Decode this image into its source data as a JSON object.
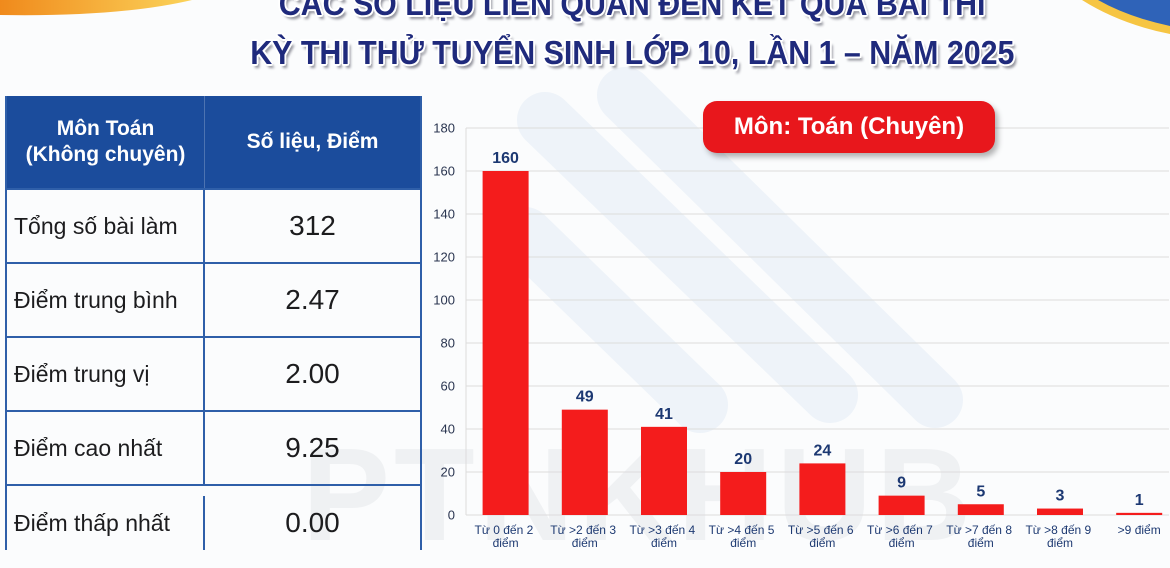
{
  "title": {
    "line1": "CÁC SỐ LIỆU LIÊN QUAN ĐẾN KẾT QUẢ BÀI THI",
    "line2": "KỲ THI THỬ TUYỂN SINH LỚP 10, LẦN 1 – NĂM 2025"
  },
  "stats_table": {
    "header": {
      "subject_line1": "Môn Toán",
      "subject_line2": "(Không chuyên)",
      "value_column": "Số liệu, Điểm"
    },
    "rows": [
      {
        "label": "Tổng số bài làm",
        "value": "312"
      },
      {
        "label": "Điểm trung bình",
        "value": "2.47"
      },
      {
        "label": "Điểm trung vị",
        "value": "2.00"
      },
      {
        "label": "Điểm cao nhất",
        "value": "9.25"
      },
      {
        "label": "Điểm thấp nhất",
        "value": "0.00"
      }
    ]
  },
  "chart_data": {
    "type": "bar",
    "title": "Môn: Toán (Chuyên)",
    "categories": [
      "Từ 0 đến 2 điểm",
      "Từ >2 đến 3 điểm",
      "Từ >3 đến 4 điểm",
      "Từ >4 đến 5 điểm",
      "Từ >5 đến 6 điểm",
      "Từ >6 đến 7 điểm",
      "Từ >7 đến 8 điểm",
      "Từ >8 đến 9 điểm",
      ">9 điểm"
    ],
    "values": [
      160,
      49,
      41,
      20,
      24,
      9,
      5,
      3,
      1
    ],
    "ylim": [
      0,
      180
    ],
    "yticks": [
      0,
      20,
      40,
      60,
      80,
      100,
      120,
      140,
      160,
      180
    ],
    "grid": true,
    "data_labels": true,
    "colors": {
      "bar": "#f41c1c",
      "data_label": "#1c3872",
      "tick_label": "#2a3550",
      "category_label": "#1e3a72",
      "grid": "#dcdcdc",
      "title_badge": "#e8171c"
    }
  },
  "watermark": "PTNKHUB",
  "colors": {
    "title_text": "#1f2a7c",
    "table_header_bg": "#1b4c9c",
    "table_border": "#2f5fa9"
  }
}
